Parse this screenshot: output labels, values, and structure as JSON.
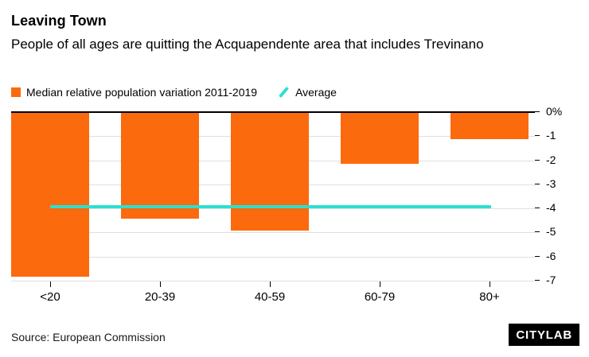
{
  "header": {
    "title": "Leaving Town",
    "subtitle": "People of all ages are quitting the Acquapendente area that includes Trevinano"
  },
  "legend": {
    "series_label": "Median relative population variation 2011-2019",
    "average_label": "Average"
  },
  "chart_data": {
    "type": "bar",
    "categories": [
      "<20",
      "20-39",
      "40-59",
      "60-79",
      "80+"
    ],
    "values": [
      -6.8,
      -4.4,
      -4.9,
      -2.1,
      -1.1
    ],
    "average": -3.9,
    "title": "Leaving Town",
    "xlabel": "",
    "ylabel": "",
    "ylim": [
      -7,
      0
    ],
    "yticks": [
      "0%",
      "-1",
      "-2",
      "-3",
      "-4",
      "-5",
      "-6",
      "-7"
    ],
    "bar_color": "#fb6a0d",
    "average_color": "#2ce0d1",
    "grid": true,
    "legend_position": "top"
  },
  "footer": {
    "source": "Source: European Commission",
    "brand": "CITYLAB"
  }
}
